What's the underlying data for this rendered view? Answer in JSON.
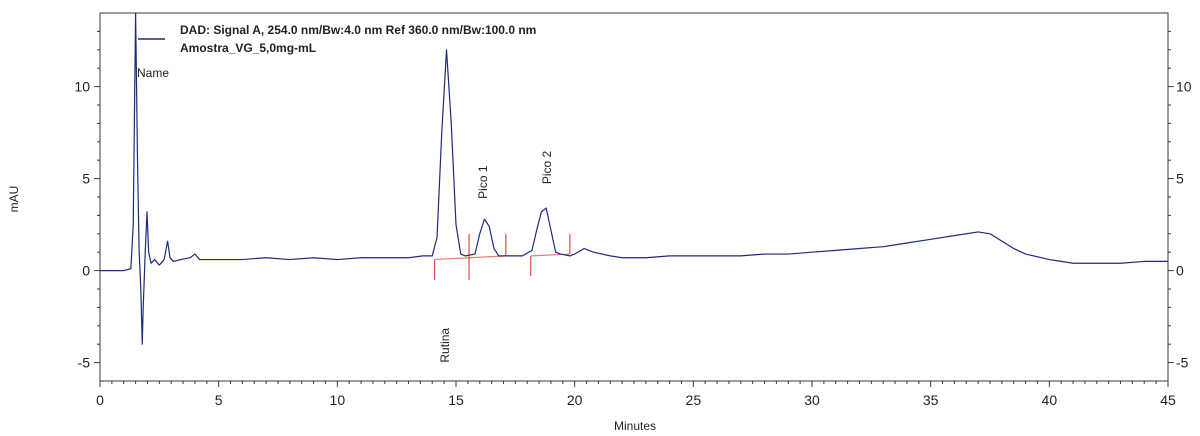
{
  "colors": {
    "trace": "#1f2a7a",
    "baseline": "#f07a7a",
    "marker": "#d22b2b",
    "axis": "#3a3a3a",
    "text": "#222222",
    "background": "#ffffff"
  },
  "chart_data": {
    "type": "line",
    "title": "",
    "legend": {
      "placement": "top-left",
      "entries": [
        "DAD: Signal A, 254.0 nm/Bw:4.0 nm Ref 360.0 nm/Bw:100.0 nm",
        "Amostra_VG_5,0mg-mL"
      ],
      "name_label": "Name"
    },
    "xlabel": "Minutes",
    "ylabel": "mAU",
    "xlim": [
      0,
      45
    ],
    "ylim": [
      -6,
      14
    ],
    "xticks": [
      0,
      5,
      10,
      15,
      20,
      25,
      30,
      35,
      40,
      45
    ],
    "yticks": [
      -5,
      0,
      5,
      10
    ],
    "grid": false,
    "series": [
      {
        "name": "Amostra_VG_5,0mg-mL",
        "x": [
          0.0,
          1.0,
          1.3,
          1.4,
          1.5,
          1.58,
          1.65,
          1.72,
          1.78,
          1.82,
          1.9,
          1.98,
          2.05,
          2.15,
          2.3,
          2.5,
          2.7,
          2.85,
          2.95,
          3.1,
          3.4,
          3.8,
          4.0,
          4.2,
          4.6,
          5.0,
          6.0,
          7.0,
          8.0,
          9.0,
          10.0,
          11.0,
          12.0,
          13.0,
          13.6,
          14.0,
          14.2,
          14.4,
          14.6,
          14.8,
          15.0,
          15.2,
          15.4,
          15.8,
          16.0,
          16.2,
          16.4,
          16.6,
          16.8,
          17.2,
          17.8,
          18.2,
          18.4,
          18.6,
          18.8,
          19.0,
          19.2,
          19.4,
          19.8,
          20.0,
          20.4,
          20.8,
          21.5,
          22.0,
          23.0,
          24.0,
          25.0,
          26.0,
          27.0,
          28.0,
          29.0,
          30.0,
          31.0,
          32.0,
          33.0,
          34.0,
          35.0,
          36.0,
          37.0,
          37.5,
          38.0,
          38.5,
          39.0,
          40.0,
          40.5,
          41.0,
          42.0,
          43.0,
          44.0,
          45.0
        ],
        "values": [
          0.0,
          0.0,
          0.1,
          2.5,
          14.0,
          6.0,
          1.0,
          -1.0,
          -4.0,
          -2.0,
          0.8,
          3.2,
          1.0,
          0.4,
          0.6,
          0.3,
          0.6,
          1.6,
          0.7,
          0.5,
          0.6,
          0.7,
          0.9,
          0.6,
          0.6,
          0.6,
          0.6,
          0.7,
          0.6,
          0.7,
          0.6,
          0.7,
          0.7,
          0.7,
          0.8,
          0.8,
          1.8,
          7.5,
          12.0,
          8.0,
          2.5,
          0.9,
          0.8,
          0.9,
          2.0,
          2.8,
          2.4,
          1.2,
          0.8,
          0.8,
          0.8,
          1.1,
          2.2,
          3.2,
          3.4,
          2.2,
          1.0,
          0.9,
          0.8,
          0.9,
          1.2,
          1.0,
          0.8,
          0.7,
          0.7,
          0.8,
          0.8,
          0.8,
          0.8,
          0.9,
          0.9,
          1.0,
          1.1,
          1.2,
          1.3,
          1.5,
          1.7,
          1.9,
          2.1,
          2.0,
          1.6,
          1.2,
          0.9,
          0.6,
          0.5,
          0.4,
          0.4,
          0.4,
          0.5,
          0.5
        ]
      }
    ],
    "baseline_segments": [
      {
        "x": [
          14.1,
          15.55
        ],
        "values": [
          0.6,
          0.7
        ]
      },
      {
        "x": [
          15.55,
          17.1
        ],
        "values": [
          0.7,
          0.8
        ]
      },
      {
        "x": [
          18.15,
          19.8
        ],
        "values": [
          0.8,
          0.9
        ]
      }
    ],
    "integration_markers": [
      {
        "x": 14.1,
        "from": 0.6,
        "to": -0.5
      },
      {
        "x": 15.55,
        "from": 0.7,
        "to": 2.0
      },
      {
        "x": 15.55,
        "from": 0.7,
        "to": -0.5
      },
      {
        "x": 17.1,
        "from": 0.8,
        "to": 2.0
      },
      {
        "x": 18.15,
        "from": 0.8,
        "to": -0.3
      },
      {
        "x": 19.8,
        "from": 0.9,
        "to": 2.0
      }
    ],
    "annotations": [
      {
        "label": "Rutina",
        "x": 14.7,
        "y": -5.0
      },
      {
        "label": "Pico 1",
        "x": 16.3,
        "y": 3.9
      },
      {
        "label": "Pico 2",
        "x": 19.0,
        "y": 4.7
      }
    ]
  }
}
